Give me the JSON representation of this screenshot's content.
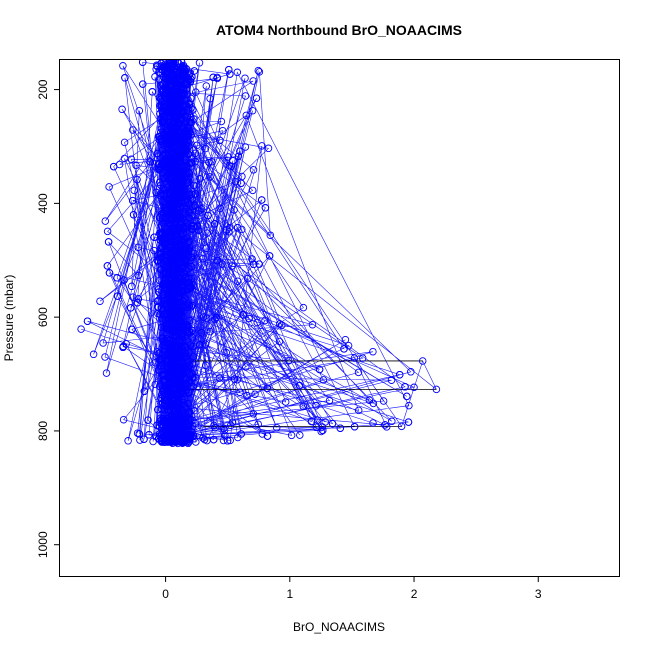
{
  "chart_data": {
    "type": "scatter",
    "title": "ATOM4 Northbound BrO_NOAACIMS",
    "xlabel": "BrO_NOAACIMS",
    "ylabel": "Pressure (mbar)",
    "xlim": [
      -0.85,
      3.65
    ],
    "ylim": [
      1055,
      148
    ],
    "y_reversed": true,
    "x_ticks": [
      0,
      1,
      2,
      3
    ],
    "y_ticks": [
      200,
      400,
      600,
      800,
      1000
    ],
    "grid": false,
    "legend": "none",
    "point_style": "open-circle",
    "point_color": "#0000ff",
    "line_color": "#0000ff",
    "x_range_min_by_pressure": [
      [
        150,
        -0.35
      ],
      [
        250,
        -0.45
      ],
      [
        350,
        -0.45
      ],
      [
        450,
        -0.5
      ],
      [
        550,
        -0.55
      ],
      [
        620,
        -0.7
      ],
      [
        680,
        -0.55
      ],
      [
        760,
        -0.4
      ],
      [
        820,
        -0.3
      ]
    ],
    "x_range_max_by_pressure": [
      [
        150,
        0.9
      ],
      [
        250,
        0.85
      ],
      [
        350,
        0.85
      ],
      [
        450,
        0.95
      ],
      [
        550,
        1.05
      ],
      [
        620,
        1.25
      ],
      [
        680,
        2.1
      ],
      [
        730,
        2.2
      ],
      [
        790,
        1.95
      ],
      [
        820,
        0.5
      ]
    ],
    "highlights": [
      {
        "x": 2.18,
        "y": 727
      },
      {
        "x": 2.07,
        "y": 677
      },
      {
        "x": 1.9,
        "y": 792
      },
      {
        "x": 1.52,
        "y": 672
      },
      {
        "x": 1.78,
        "y": 793
      },
      {
        "x": 1.67,
        "y": 786
      },
      {
        "x": -0.68,
        "y": 621
      }
    ]
  }
}
